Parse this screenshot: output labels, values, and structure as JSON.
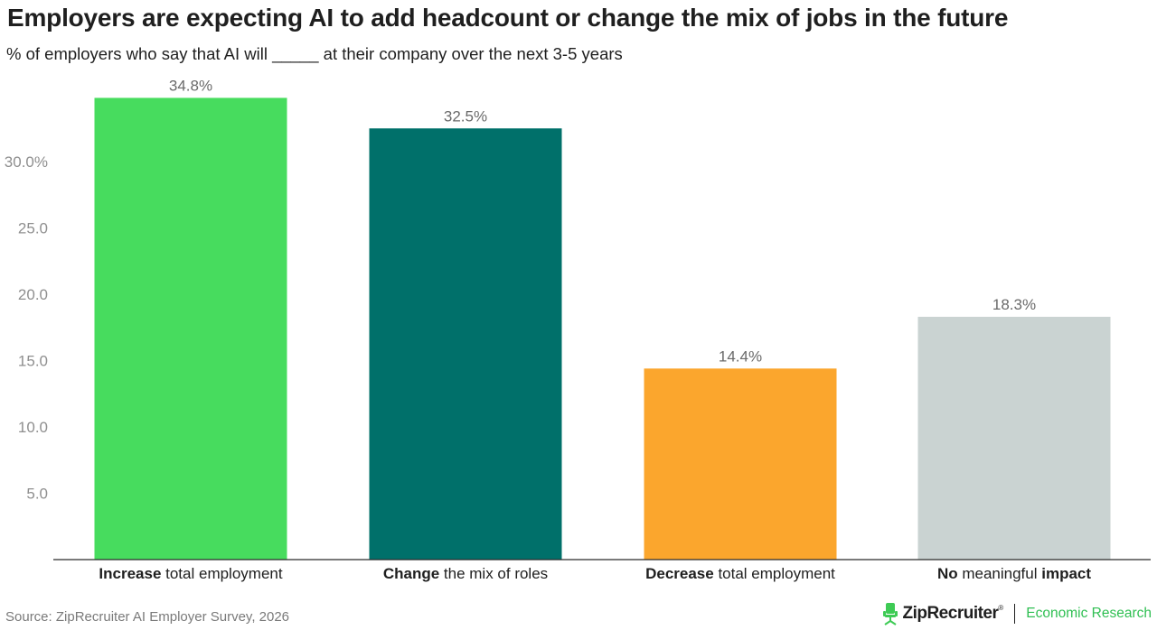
{
  "header": {
    "title": "Employers are expecting AI to add headcount or change the mix of jobs in the future",
    "subtitle": "% of employers who say that AI will _____ at their company over the next 3-5 years"
  },
  "chart_data": {
    "type": "bar",
    "title": "Employers are expecting AI to add headcount or change the mix of jobs in the future",
    "subtitle": "% of employers who say that AI will _____ at their company over the next 3-5 years",
    "categories": [
      {
        "bold": "Increase",
        "rest": " total employment"
      },
      {
        "bold": "Change",
        "rest": " the mix of roles"
      },
      {
        "bold": "Decrease",
        "rest": " total employment"
      },
      {
        "bold": "No",
        "rest": " meaningful ",
        "bold2": "impact"
      }
    ],
    "values": [
      34.8,
      32.5,
      14.4,
      18.3
    ],
    "value_labels": [
      "34.8%",
      "32.5%",
      "14.4%",
      "18.3%"
    ],
    "colors": [
      "#47dc5e",
      "#00706a",
      "#fba62d",
      "#cad3d2"
    ],
    "y_ticks": [
      {
        "value": 5,
        "label": "5.0"
      },
      {
        "value": 10,
        "label": "10.0"
      },
      {
        "value": 15,
        "label": "15.0"
      },
      {
        "value": 20,
        "label": "20.0"
      },
      {
        "value": 25,
        "label": "25.0"
      },
      {
        "value": 30,
        "label": "30.0%"
      }
    ],
    "ylim": [
      0,
      35
    ],
    "grid": false,
    "legend": "none"
  },
  "footer": {
    "source": "Source: ZipRecruiter AI Employer Survey, 2026",
    "brand_name": "ZipRecruiter",
    "brand_mark": "®",
    "brand_division": "Economic Research",
    "brand_icon": "chair-icon"
  }
}
